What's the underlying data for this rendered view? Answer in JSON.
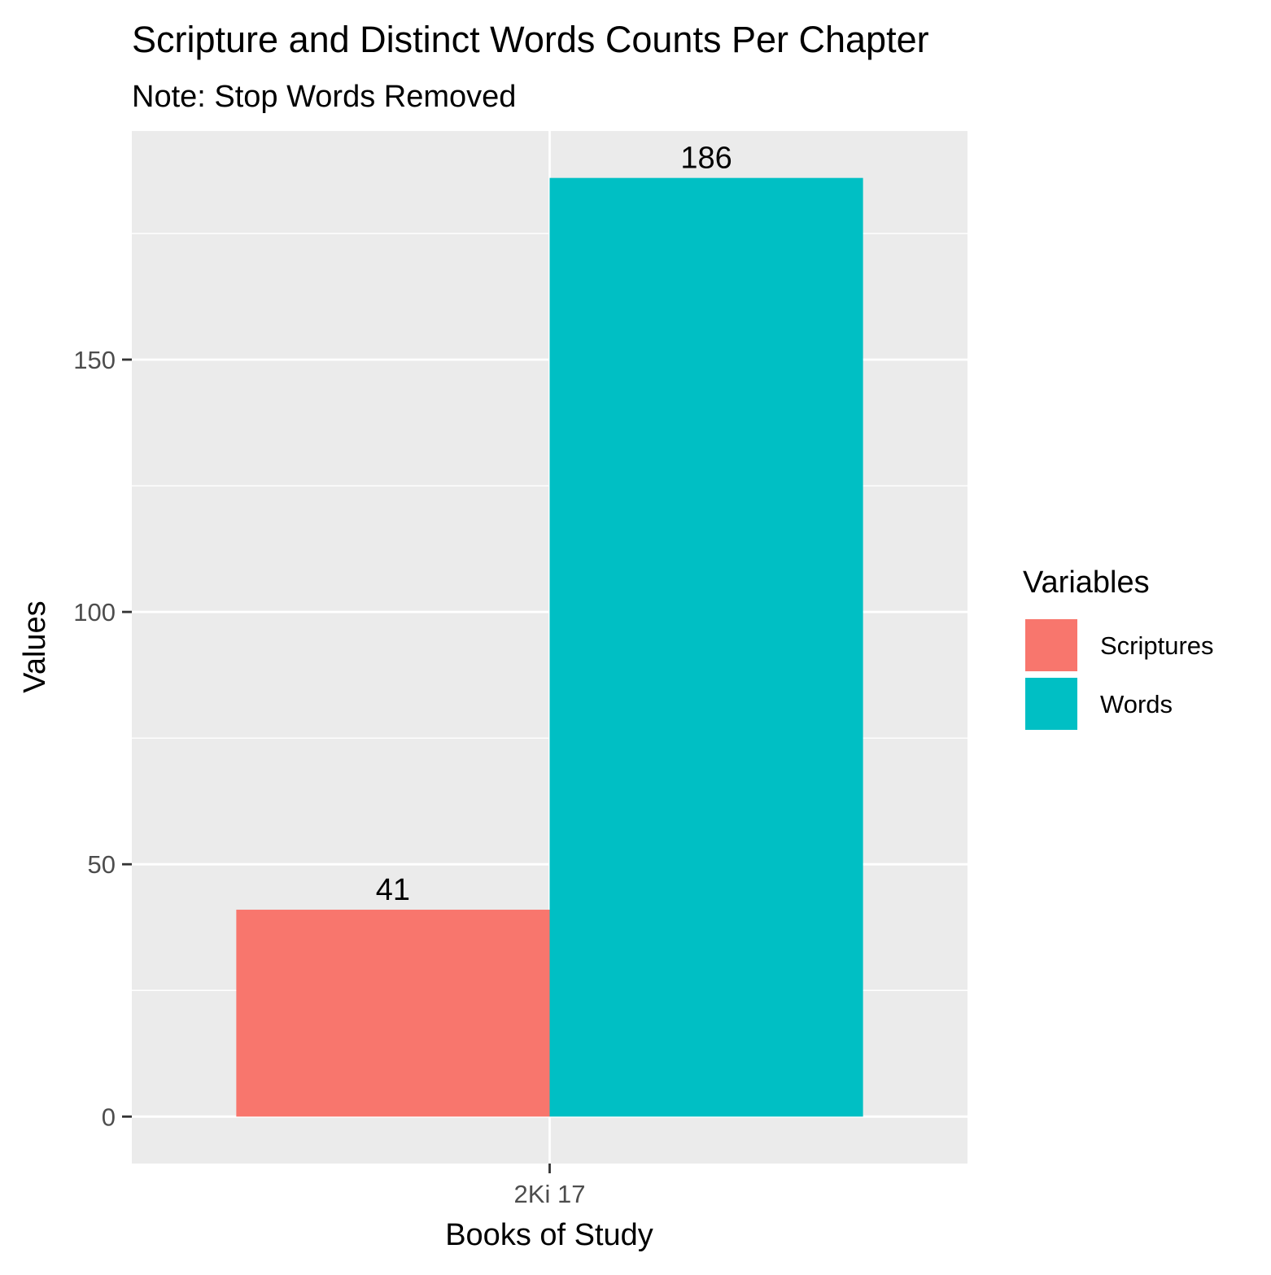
{
  "chart_data": {
    "type": "bar",
    "title": "Scripture and Distinct Words Counts Per Chapter",
    "subtitle": "Note: Stop Words Removed",
    "xlabel": "Books of Study",
    "ylabel": "Values",
    "categories": [
      "2Ki 17"
    ],
    "series": [
      {
        "name": "Scriptures",
        "values": [
          41
        ],
        "color": "#F8766D"
      },
      {
        "name": "Words",
        "values": [
          186
        ],
        "color": "#00BFC4"
      }
    ],
    "yticks": [
      0,
      50,
      100,
      150
    ],
    "ylim": [
      -9.3,
      195.3
    ],
    "grid": true,
    "legend": {
      "title": "Variables",
      "position": "right"
    },
    "panel_background": "#EBEBEB",
    "gridline_color": "#FFFFFF"
  }
}
